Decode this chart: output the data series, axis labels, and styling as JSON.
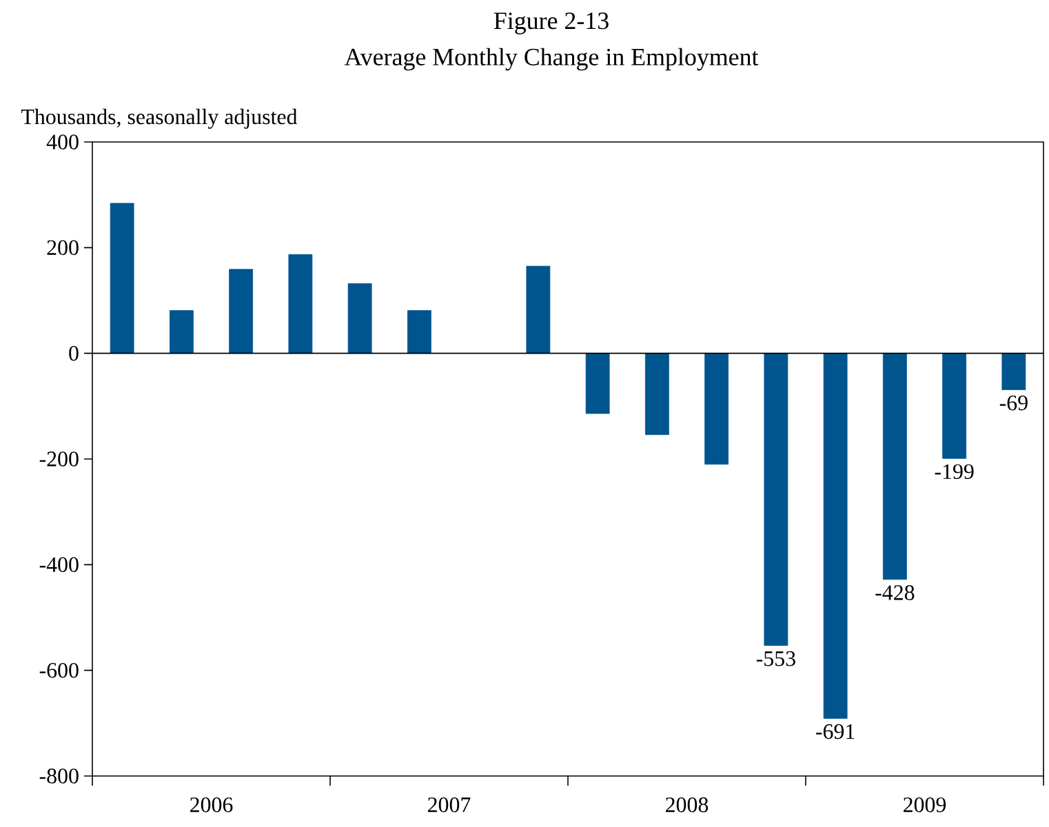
{
  "chart_data": {
    "type": "bar",
    "title": "Figure 2-13",
    "subtitle": "Average Monthly Change in Employment",
    "ylabel": "Thousands, seasonally adjusted",
    "x": [
      2006.125,
      2006.375,
      2006.625,
      2006.875,
      2007.125,
      2007.375,
      2007.625,
      2007.875,
      2008.125,
      2008.375,
      2008.625,
      2008.875,
      2009.125,
      2009.375,
      2009.625,
      2009.875
    ],
    "values": [
      284,
      81,
      159,
      187,
      132,
      81,
      null,
      165,
      -114,
      -154,
      -210,
      -553,
      -691,
      -428,
      -199,
      -69
    ],
    "value_labels": [
      null,
      null,
      null,
      null,
      null,
      null,
      null,
      null,
      null,
      null,
      null,
      "-553",
      "-691",
      "-428",
      "-199",
      "-69"
    ],
    "color": "#00558f",
    "xlim": [
      2006,
      2010
    ],
    "xticks": [
      {
        "value": 2006,
        "label": null
      },
      {
        "value": 2006.5,
        "label": "2006"
      },
      {
        "value": 2007,
        "label": null
      },
      {
        "value": 2007.5,
        "label": "2007"
      },
      {
        "value": 2008,
        "label": null
      },
      {
        "value": 2008.5,
        "label": "2008"
      },
      {
        "value": 2009,
        "label": null
      },
      {
        "value": 2009.5,
        "label": "2009"
      },
      {
        "value": 2010,
        "label": null
      }
    ],
    "ylim": [
      -800,
      400
    ],
    "yticks": [
      -800,
      -600,
      -400,
      -200,
      0,
      200,
      400
    ],
    "ref_lines": [
      {
        "axis": "y",
        "value": 0
      }
    ]
  }
}
